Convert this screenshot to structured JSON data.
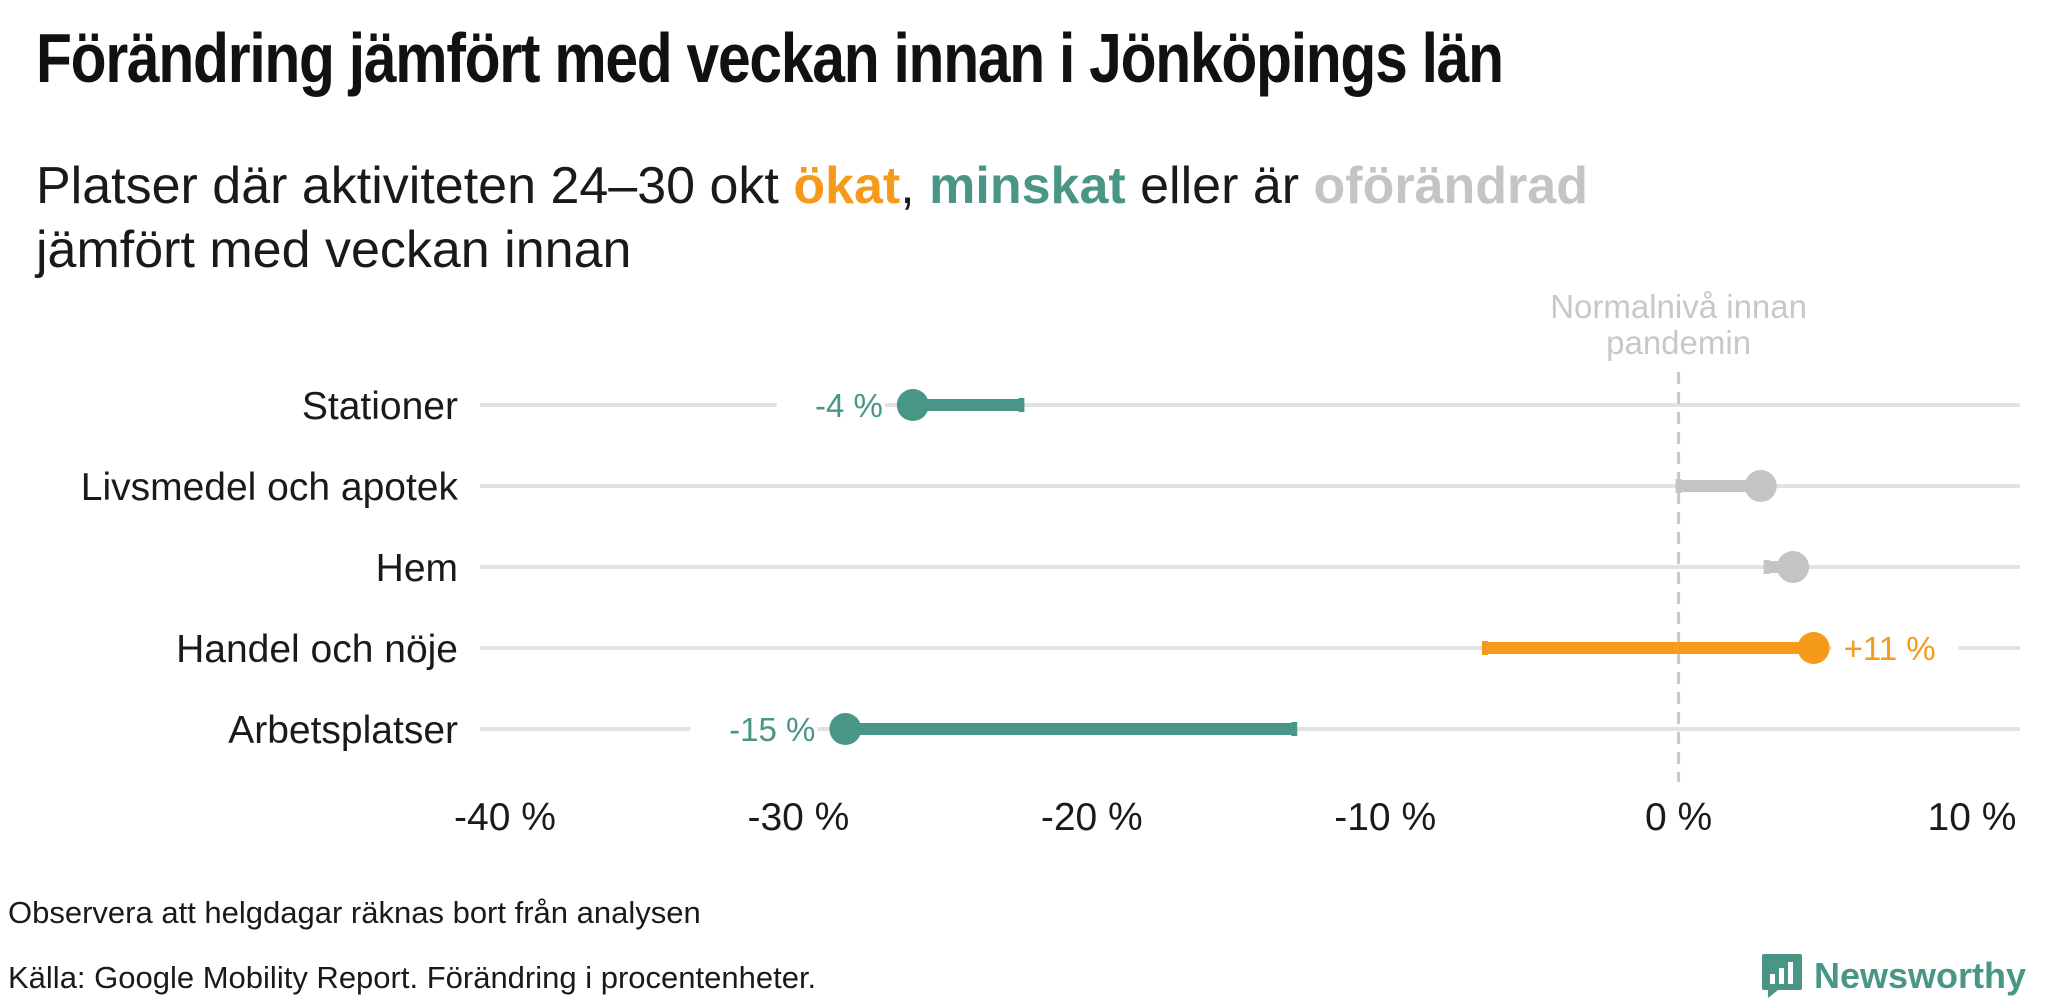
{
  "header": {
    "title": "Förändring jämfört med veckan innan i Jönköpings län"
  },
  "subtitle": {
    "part1": "Platser där aktiviteten 24–30 okt ",
    "word_up": "ökat",
    "sep1": ", ",
    "word_down": "minskat",
    "part2": " eller är ",
    "word_same": "oförändrad",
    "line2": "jämfört med veckan innan"
  },
  "colors": {
    "increase": "#f59a1a",
    "decrease": "#4a9686",
    "unchanged": "#c4c4c4",
    "gridline": "#e2e2e2",
    "reference": "#c8c8c8",
    "text": "#1a1a1a"
  },
  "chart_data": {
    "type": "dumbbell",
    "x_axis": {
      "range": [
        -40,
        10
      ],
      "ticks": [
        -40,
        -30,
        -20,
        -10,
        0,
        10
      ],
      "tick_labels": [
        "-40 %",
        "-30 %",
        "-20 %",
        "-10 %",
        "0 %",
        "10 %"
      ]
    },
    "reference_line": {
      "value": 0,
      "label_lines": [
        "Normalnivå innan",
        "pandemin"
      ]
    },
    "categories": [
      "Stationer",
      "Livsmedel och apotek",
      "Hem",
      "Handel och nöje",
      "Arbetsplatser"
    ],
    "rows": [
      {
        "category": "Stationer",
        "previous_week": -22.4,
        "this_week": -26.1,
        "change_label": "-4 %",
        "status": "decrease"
      },
      {
        "category": "Livsmedel och apotek",
        "previous_week": 0.0,
        "this_week": 2.8,
        "change_label": "",
        "status": "unchanged"
      },
      {
        "category": "Hem",
        "previous_week": 3.0,
        "this_week": 3.9,
        "change_label": "",
        "status": "unchanged"
      },
      {
        "category": "Handel och nöje",
        "previous_week": -6.6,
        "this_week": 4.6,
        "change_label": "+11 %",
        "status": "increase"
      },
      {
        "category": "Arbetsplatser",
        "previous_week": -13.1,
        "this_week": -28.4,
        "change_label": "-15 %",
        "status": "decrease"
      }
    ]
  },
  "footer": {
    "note": "Observera att helgdagar räknas bort från analysen",
    "source": "Källa: Google Mobility Report. Förändring i procentenheter.",
    "brand": "Newsworthy",
    "brand_icon": "newsworthy-logo-icon"
  }
}
